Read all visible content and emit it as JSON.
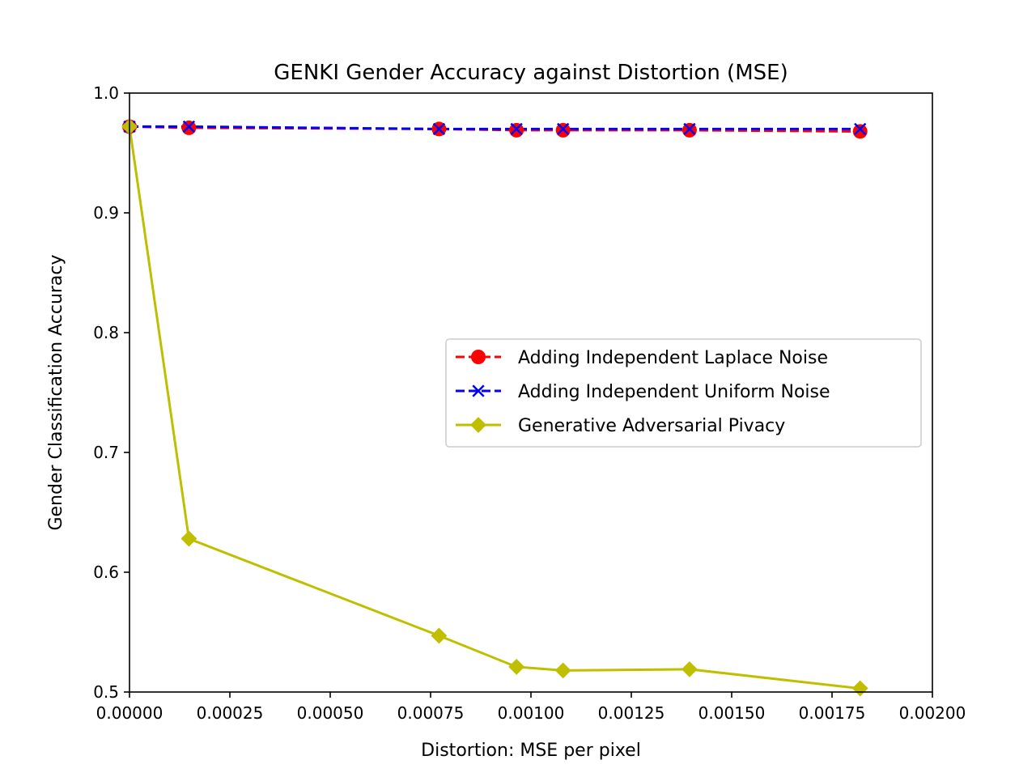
{
  "chart_data": {
    "type": "line",
    "title": "GENKI Gender Accuracy against Distortion (MSE)",
    "xlabel": "Distortion: MSE per pixel",
    "ylabel": "Gender Classification Accuracy",
    "xlim": [
      0,
      0.002
    ],
    "ylim": [
      0.5,
      1.0
    ],
    "xticks": [
      "0.00000",
      "0.00025",
      "0.00050",
      "0.00075",
      "0.00100",
      "0.00125",
      "0.00150",
      "0.00175",
      "0.00200"
    ],
    "yticks": [
      "0.5",
      "0.6",
      "0.7",
      "0.8",
      "0.9",
      "1.0"
    ],
    "grid": false,
    "legend_position": "center-right",
    "series": [
      {
        "name": "Adding Independent Laplace Noise",
        "color": "#ff0000",
        "line_style": "dashed",
        "marker": "circle",
        "x": [
          0.0,
          0.000148,
          0.000771,
          0.000964,
          0.00108,
          0.001395,
          0.00182
        ],
        "y": [
          0.972,
          0.971,
          0.97,
          0.969,
          0.969,
          0.969,
          0.968
        ]
      },
      {
        "name": "Adding Independent Uniform Noise",
        "color": "#0000ff",
        "line_style": "dashed",
        "marker": "x",
        "x": [
          0.0,
          0.000148,
          0.000771,
          0.000964,
          0.00108,
          0.001395,
          0.00182
        ],
        "y": [
          0.972,
          0.972,
          0.97,
          0.97,
          0.97,
          0.97,
          0.97
        ]
      },
      {
        "name": "Generative Adversarial Pivacy",
        "color": "#bfbf00",
        "line_style": "solid",
        "marker": "diamond",
        "x": [
          0.0,
          0.000148,
          0.000771,
          0.000964,
          0.00108,
          0.001395,
          0.00182
        ],
        "y": [
          0.972,
          0.628,
          0.547,
          0.521,
          0.518,
          0.519,
          0.503
        ]
      }
    ]
  }
}
